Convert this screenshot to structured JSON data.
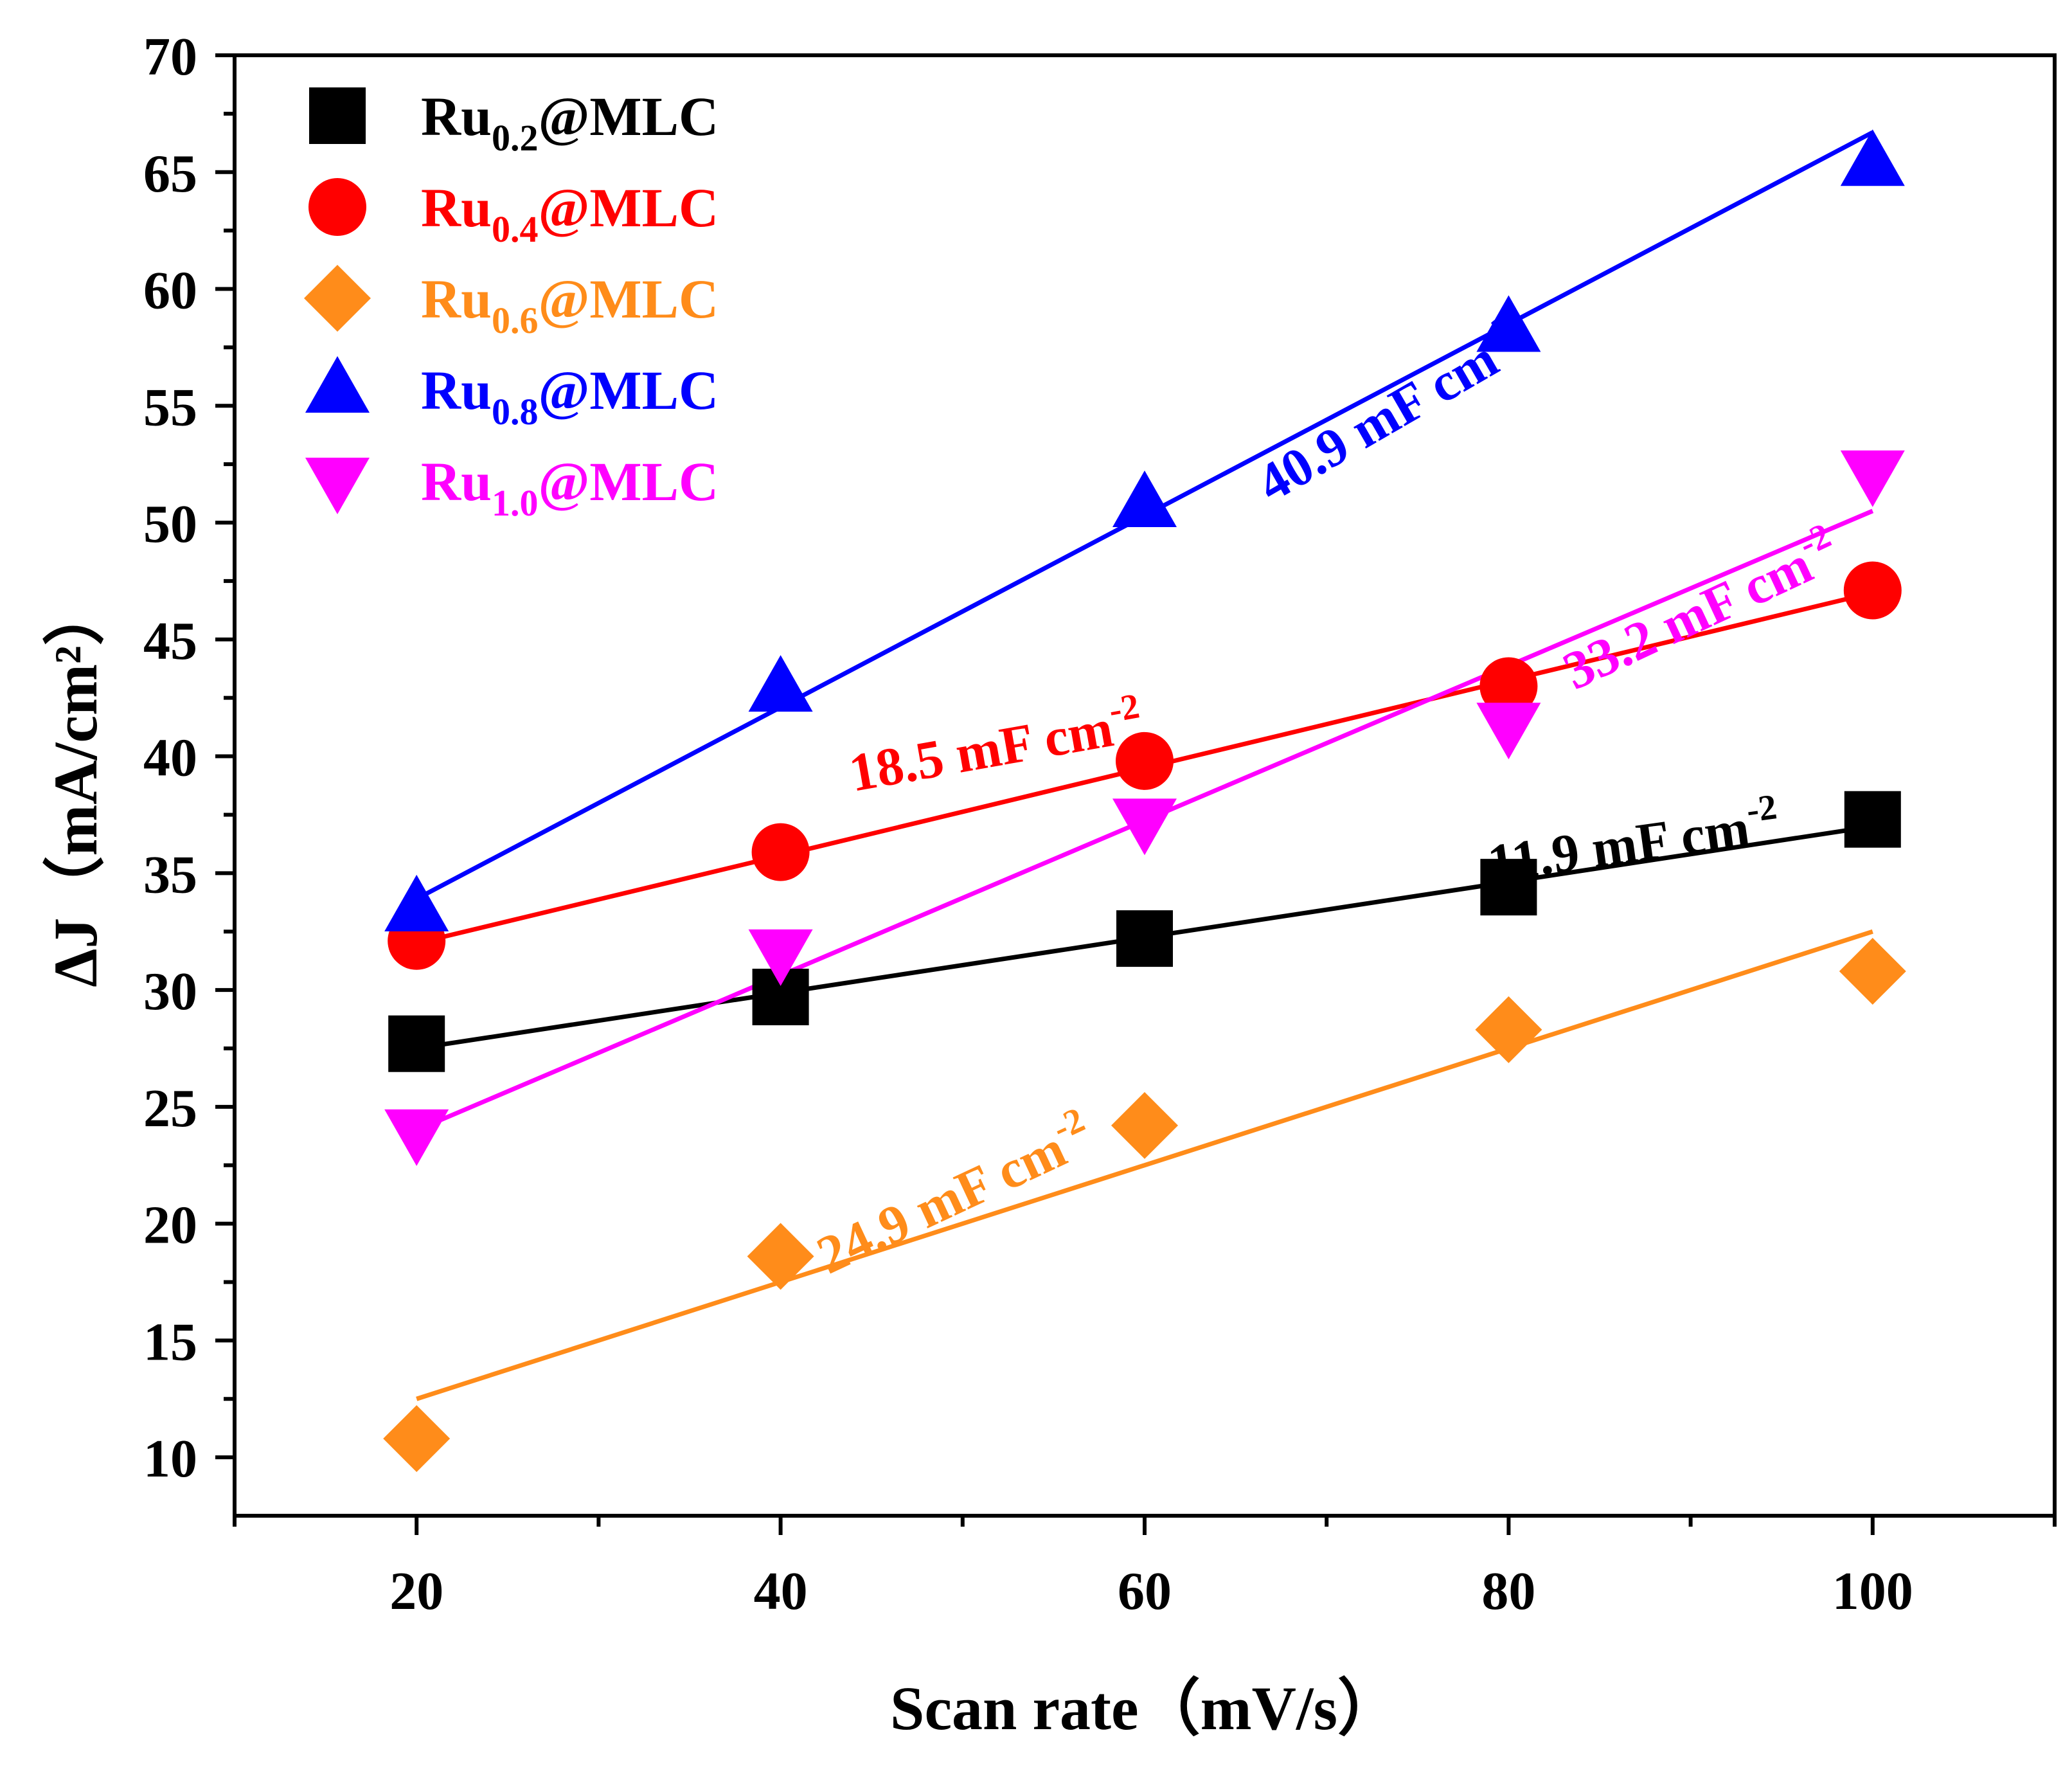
{
  "chart_data": {
    "type": "scatter",
    "xlabel": "Scan rate（mV/s）",
    "ylabel": "ΔJ（mA/cm²）",
    "xlim": [
      10,
      110
    ],
    "ylim": [
      7.5,
      70
    ],
    "x_ticks": [
      20,
      40,
      60,
      80,
      100
    ],
    "y_ticks": [
      10,
      15,
      20,
      25,
      30,
      35,
      40,
      45,
      50,
      55,
      60,
      65,
      70
    ],
    "legend_position": "top-left",
    "series": [
      {
        "name": "Ru0.2@MLC",
        "label_prefix": "Ru",
        "label_sub": "0.2",
        "label_suffix": "@MLC",
        "color": "#000000",
        "marker": "square",
        "x": [
          20,
          40,
          60,
          80,
          100
        ],
        "y": [
          27.7,
          29.7,
          32.2,
          34.4,
          37.3
        ],
        "fit": {
          "x": [
            20,
            100
          ],
          "y": [
            27.5,
            37.0
          ]
        },
        "annotation": {
          "text": "11.9 mF cm",
          "sup": "-2",
          "x": 87,
          "y": 35.5,
          "rotate": -8
        }
      },
      {
        "name": "Ru0.4@MLC",
        "label_prefix": "Ru",
        "label_sub": "0.4",
        "label_suffix": "@MLC",
        "color": "#ff0000",
        "marker": "circle",
        "x": [
          20,
          40,
          60,
          80,
          100
        ],
        "y": [
          32.1,
          35.9,
          39.8,
          43.0,
          47.1
        ],
        "fit": {
          "x": [
            20,
            100
          ],
          "y": [
            32.0,
            47.0
          ]
        },
        "annotation": {
          "text": "18.5 mF cm",
          "sup": "-2",
          "x": 52,
          "y": 39.6,
          "rotate": -10
        }
      },
      {
        "name": "Ru0.6@MLC",
        "label_prefix": "Ru",
        "label_sub": "0.6",
        "label_suffix": "@MLC",
        "color": "#ff8c1a",
        "marker": "diamond",
        "x": [
          20,
          40,
          60,
          80,
          100
        ],
        "y": [
          10.8,
          18.6,
          24.2,
          28.3,
          30.8
        ],
        "fit": {
          "x": [
            20,
            100
          ],
          "y": [
            12.5,
            32.5
          ]
        },
        "annotation": {
          "text": "24.9 mF cm",
          "sup": "-2",
          "x": 50,
          "y": 20.5,
          "rotate": -25
        }
      },
      {
        "name": "Ru0.8@MLC",
        "label_prefix": "Ru",
        "label_sub": "0.8",
        "label_suffix": "@MLC",
        "color": "#0000ff",
        "marker": "triangle-up",
        "x": [
          20,
          40,
          60,
          80,
          100
        ],
        "y": [
          33.5,
          42.9,
          50.8,
          58.3,
          65.4
        ],
        "fit": {
          "x": [
            20,
            100
          ],
          "y": [
            33.9,
            66.7
          ]
        },
        "annotation": {
          "text": "40.9 mF cm",
          "sup": "-2",
          "x": 74,
          "y": 54.0,
          "rotate": -30
        }
      },
      {
        "name": "Ru1.0@MLC",
        "label_prefix": "Ru",
        "label_sub": "1.0",
        "label_suffix": "@MLC",
        "color": "#ff00ff",
        "marker": "triangle-down",
        "x": [
          20,
          40,
          60,
          80,
          100
        ],
        "y": [
          23.9,
          31.6,
          37.2,
          41.3,
          52.1
        ],
        "fit": {
          "x": [
            20,
            100
          ],
          "y": [
            24.0,
            50.5
          ]
        },
        "annotation": {
          "text": "33.2 mF cm",
          "sup": "-2",
          "x": 91,
          "y": 45.5,
          "rotate": -25
        }
      }
    ]
  }
}
